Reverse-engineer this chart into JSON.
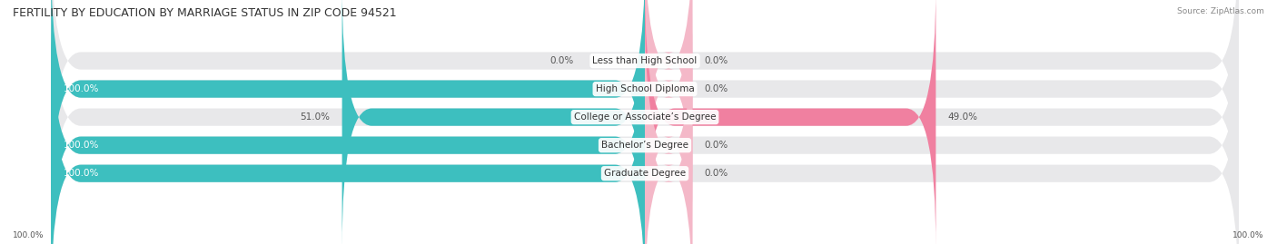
{
  "title": "FERTILITY BY EDUCATION BY MARRIAGE STATUS IN ZIP CODE 94521",
  "source": "Source: ZipAtlas.com",
  "categories": [
    "Less than High School",
    "High School Diploma",
    "College or Associate’s Degree",
    "Bachelor’s Degree",
    "Graduate Degree"
  ],
  "married": [
    0.0,
    100.0,
    51.0,
    100.0,
    100.0
  ],
  "unmarried": [
    0.0,
    0.0,
    49.0,
    0.0,
    0.0
  ],
  "married_color": "#3DBFBF",
  "unmarried_color": "#F080A0",
  "unmarried_color_light": "#F4B8C8",
  "bar_bg_color": "#E8E8EA",
  "bar_height": 0.62,
  "figsize": [
    14.06,
    2.69
  ],
  "dpi": 100,
  "title_fontsize": 9,
  "label_fontsize": 7.5,
  "value_fontsize": 7.5,
  "bg_color": "#FFFFFF",
  "xlim": 100,
  "n_rows": 5,
  "row_sep_color": "#CCCCCC"
}
